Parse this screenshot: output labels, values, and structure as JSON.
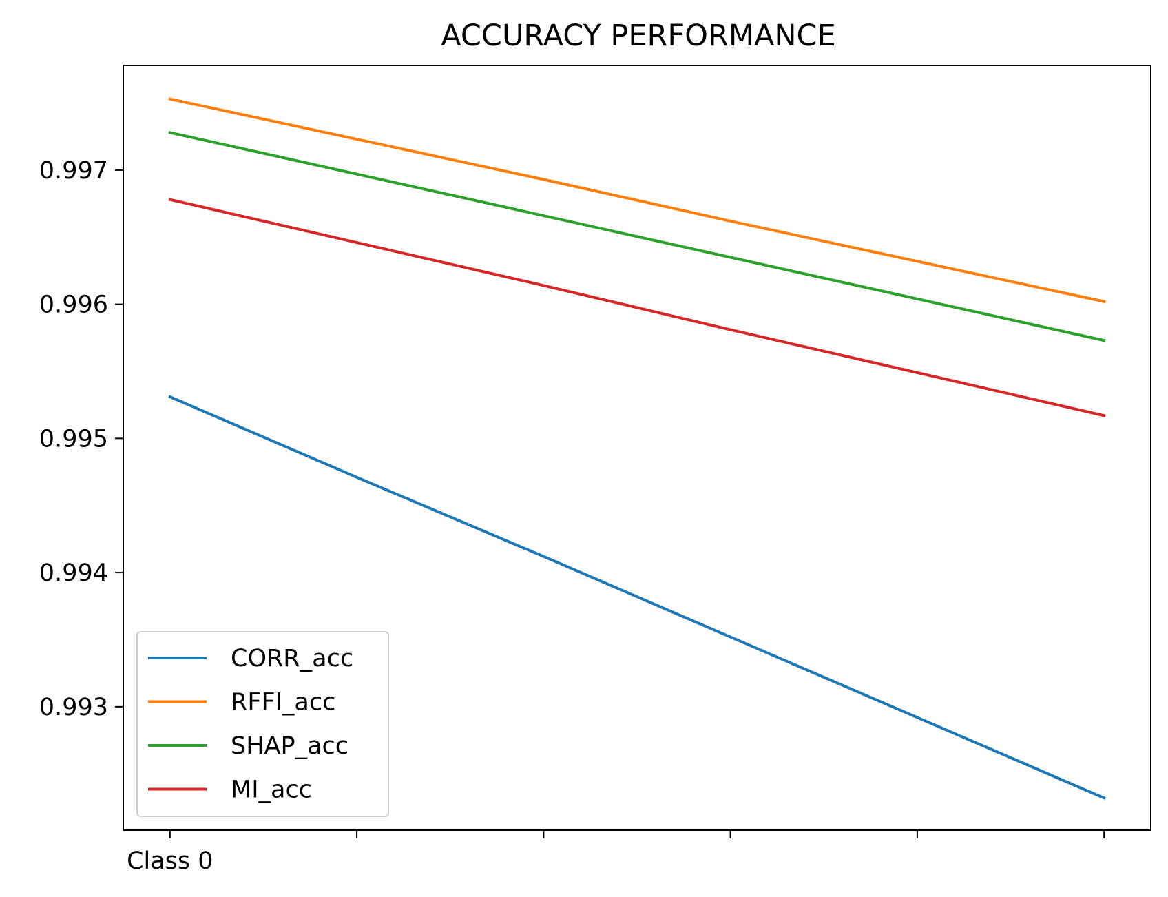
{
  "chart_data": {
    "type": "line",
    "title": "ACCURACY PERFORMANCE",
    "xlabel": "",
    "ylabel": "",
    "x": [
      0,
      1,
      2,
      3,
      4,
      5
    ],
    "xtick_labels": [
      "Class 0",
      "",
      "",
      "",
      "",
      ""
    ],
    "xlim": [
      -0.25,
      5.25
    ],
    "ylim": [
      0.99208,
      0.99778
    ],
    "yticks": [
      0.993,
      0.994,
      0.995,
      0.996,
      0.997
    ],
    "ytick_labels": [
      "0.993",
      "0.994",
      "0.995",
      "0.996",
      "0.997"
    ],
    "grid": false,
    "legend_position": "lower-left",
    "series": [
      {
        "name": "CORR_acc",
        "color": "#1f77b4",
        "values": [
          0.99531,
          0.99471,
          0.99412,
          0.99352,
          0.99292,
          0.99232
        ]
      },
      {
        "name": "RFFI_acc",
        "color": "#ff7f0e",
        "values": [
          0.99753,
          0.99723,
          0.99693,
          0.99662,
          0.99632,
          0.99602
        ]
      },
      {
        "name": "SHAP_acc",
        "color": "#2ca02c",
        "values": [
          0.99728,
          0.99697,
          0.99666,
          0.99635,
          0.99604,
          0.99573
        ]
      },
      {
        "name": "MI_acc",
        "color": "#d62728",
        "values": [
          0.99678,
          0.99646,
          0.99614,
          0.99581,
          0.99549,
          0.99517
        ]
      }
    ]
  }
}
